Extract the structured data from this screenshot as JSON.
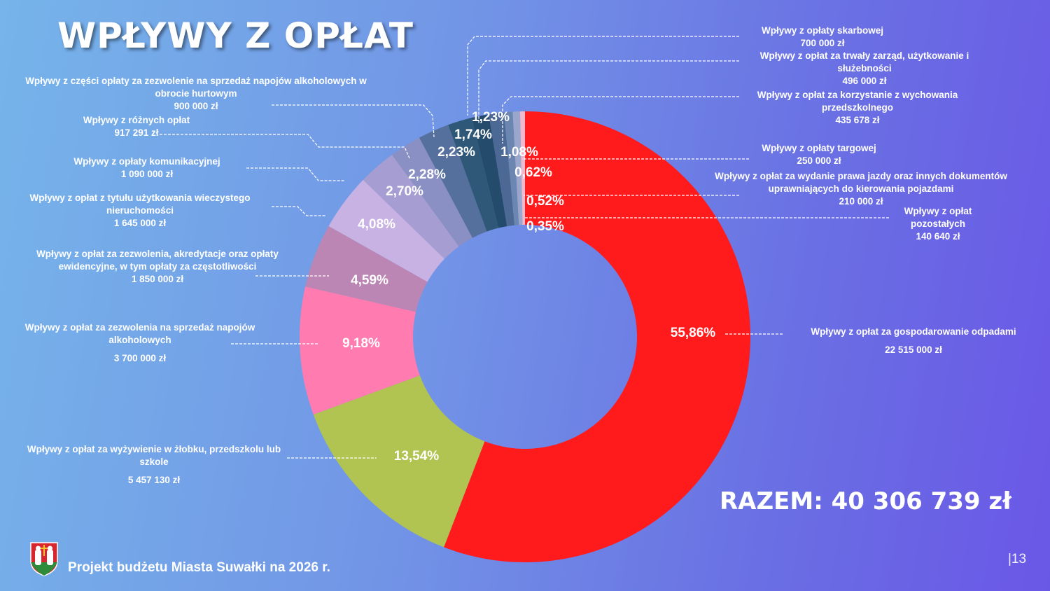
{
  "title": "WPŁYWY Z OPŁAT",
  "total": "RAZEM: 40 306 739 zł",
  "footer": "Projekt budżetu Miasta Suwałki na 2026 r.",
  "page_number": "|13",
  "chart_data": {
    "type": "pie",
    "donut": true,
    "unit": "zł",
    "slices": [
      {
        "name": "Wpływy z opłat za gospodarowanie odpadami",
        "value": 22515000,
        "value_label": "22 515 000 zł",
        "percent": "55,86%",
        "color": "#ff1a1c"
      },
      {
        "name": "Wpływy z opłat za wyżywienie w żłobku, przedszkolu lub szkole",
        "value": 5457130,
        "value_label": "5 457 130 zł",
        "percent": "13,54%",
        "color": "#b1c451"
      },
      {
        "name": "Wpływy z opłat za zezwolenia na sprzedaż napojów alkoholowych",
        "value": 3700000,
        "value_label": "3 700 000 zł",
        "percent": "9,18%",
        "color": "#ff7bb0"
      },
      {
        "name": "Wpływy z opłat za zezwolenia, akredytacje oraz opłaty ewidencyjne, w tym opłaty za częstotliwości",
        "value": 1850000,
        "value_label": "1 850 000 zł",
        "percent": "4,59%",
        "color": "#bb86b3"
      },
      {
        "name": "Wpływy z opłat z tytułu użytkowania wieczystego nieruchomości",
        "value": 1645000,
        "value_label": "1 645 000 zł",
        "percent": "4,08%",
        "color": "#c8b2e3"
      },
      {
        "name": "Wpływy z opłaty komunikacyjnej",
        "value": 1090000,
        "value_label": "1 090 000 zł",
        "percent": "2,70%",
        "color": "#a69dd2"
      },
      {
        "name": "Wpływy z różnych opłat",
        "value": 917291,
        "value_label": "917 291 zł",
        "percent": "2,28%",
        "color": "#8a8fc4"
      },
      {
        "name": "Wpływy z części opłaty za zezwolenie na sprzedaż napojów alkoholowych w obrocie hurtowym",
        "value": 900000,
        "value_label": "900 000 zł",
        "percent": "2,23%",
        "color": "#55709d"
      },
      {
        "name": "Wpływy z opłaty skarbowej",
        "value": 700000,
        "value_label": "700 000 zł",
        "percent": "1,74%",
        "color": "#2f5878"
      },
      {
        "name": "Wpływy z opłat za trwały zarząd, użytkowanie i służebności",
        "value": 496000,
        "value_label": "496 000 zł",
        "percent": "1,23%",
        "color": "#244b6b"
      },
      {
        "name": "Wpływy z opłat za korzystanie z wychowania przedszkolnego",
        "value": 435678,
        "value_label": "435 678 zł",
        "percent": "1,08%",
        "color": "#4c6894"
      },
      {
        "name": "Wpływy z opłaty targowej",
        "value": 250000,
        "value_label": "250 000 zł",
        "percent": "0,62%",
        "color": "#6c86b2"
      },
      {
        "name": "Wpływy z opłat za wydanie prawa jazdy oraz innych dokumentów uprawniających do kierowania pojazdami",
        "value": 210000,
        "value_label": "210 000 zł",
        "percent": "0,52%",
        "color": "#9aa6cc"
      },
      {
        "name": "Wpływy z opłat pozostałych",
        "value": 140640,
        "value_label": "140 640  zł",
        "percent": "0,35%",
        "color": "#f2b8cc"
      }
    ]
  }
}
